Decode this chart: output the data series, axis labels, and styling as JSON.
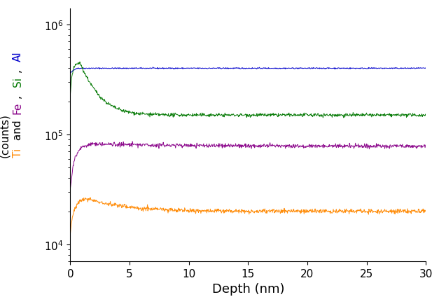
{
  "xlabel": "Depth (nm)",
  "ylabel_parts": [
    {
      "text": "Al",
      "color": "#0000CC"
    },
    {
      "text": ", ",
      "color": "#000000"
    },
    {
      "text": "Si",
      "color": "#007700"
    },
    {
      "text": ", ",
      "color": "#000000"
    },
    {
      "text": "Fe",
      "color": "#880088"
    },
    {
      "text": " and ",
      "color": "#000000"
    },
    {
      "text": "Ti",
      "color": "#FF8800"
    }
  ],
  "ylabel_line2": "(counts)",
  "xlim": [
    0,
    30
  ],
  "ylim_log": [
    7000,
    1400000
  ],
  "yticks": [
    10000,
    100000,
    1000000
  ],
  "xticks": [
    0,
    5,
    10,
    15,
    20,
    25,
    30
  ],
  "colors": {
    "blue": "#0000CC",
    "green": "#007700",
    "purple": "#880088",
    "orange": "#FF8800"
  },
  "noise_seed": 42,
  "n_points": 900
}
